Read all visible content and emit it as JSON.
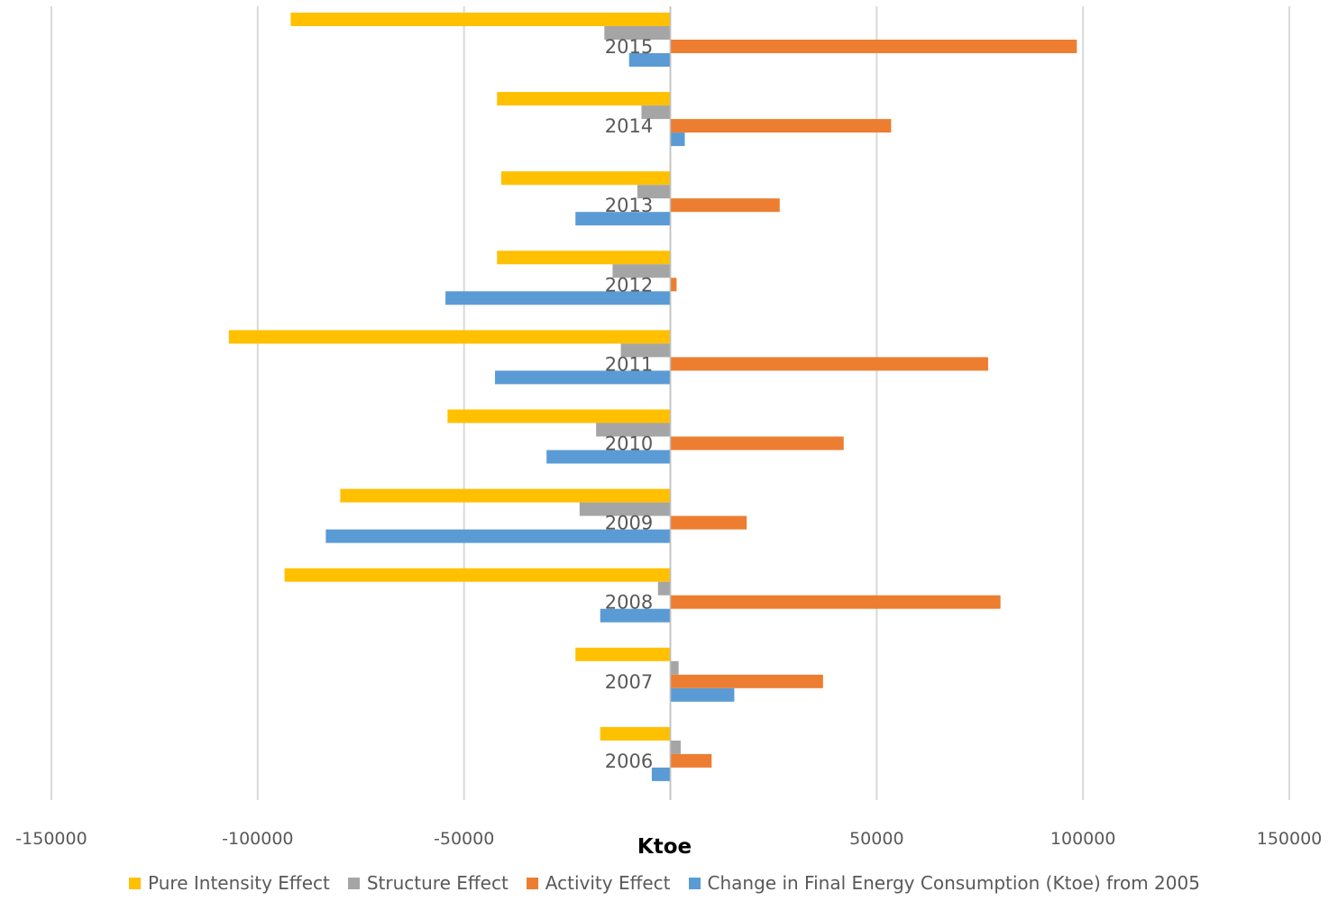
{
  "chart_data": {
    "type": "bar",
    "orientation": "horizontal",
    "categories": [
      "2015",
      "2014",
      "2013",
      "2012",
      "2011",
      "2010",
      "2009",
      "2008",
      "2007",
      "2006"
    ],
    "series": [
      {
        "name": "Pure Intensity Effect",
        "color": "#FFC000",
        "values": [
          -92000,
          -42000,
          -41000,
          -42000,
          -107000,
          -54000,
          -80000,
          -93500,
          -23000,
          -17000
        ]
      },
      {
        "name": "Structure Effect",
        "color": "#A5A5A5",
        "values": [
          -16000,
          -7000,
          -8000,
          -14000,
          -12000,
          -18000,
          -22000,
          -3000,
          2000,
          2500
        ]
      },
      {
        "name": "Activity Effect",
        "color": "#ED7D31",
        "values": [
          98500,
          53500,
          26500,
          1500,
          77000,
          42000,
          18500,
          80000,
          37000,
          10000
        ]
      },
      {
        "name": "Change in Final Energy Consumption (Ktoe) from 2005",
        "color": "#5B9BD5",
        "values": [
          -10000,
          3500,
          -23000,
          -54500,
          -42500,
          -30000,
          -83500,
          -17000,
          15500,
          -4500
        ]
      }
    ],
    "xlabel": "Ktoe",
    "ylabel": "",
    "xlim": [
      -150000,
      150000
    ],
    "xticks": [
      "-150000",
      "-100000",
      "-50000",
      "0",
      "50000",
      "100000",
      "150000"
    ],
    "grid": "vertical",
    "legend": "bottom"
  }
}
